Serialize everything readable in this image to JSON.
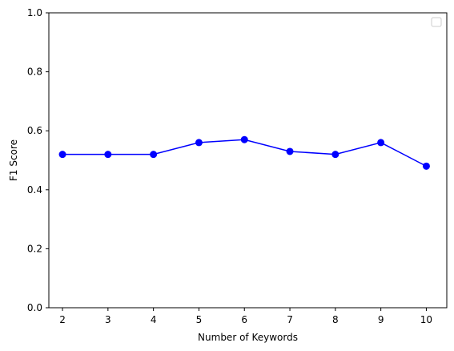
{
  "chart_data": {
    "type": "line",
    "title": "",
    "xlabel": "Number of Keywords",
    "ylabel": "F1 Score",
    "x": [
      2,
      3,
      4,
      5,
      6,
      7,
      8,
      9,
      10
    ],
    "series": [
      {
        "values": [
          0.52,
          0.52,
          0.52,
          0.56,
          0.57,
          0.53,
          0.52,
          0.56,
          0.48
        ],
        "color": "#0000ff",
        "marker": "circle"
      }
    ],
    "xlim": [
      1.7,
      10.45
    ],
    "ylim": [
      0.0,
      1.0
    ],
    "xticks": [
      "2",
      "3",
      "4",
      "5",
      "6",
      "7",
      "8",
      "9",
      "10"
    ],
    "yticks": [
      "0.0",
      "0.2",
      "0.4",
      "0.6",
      "0.8",
      "1.0"
    ],
    "grid": false,
    "legend": {
      "position": "top-right",
      "entries": []
    }
  }
}
